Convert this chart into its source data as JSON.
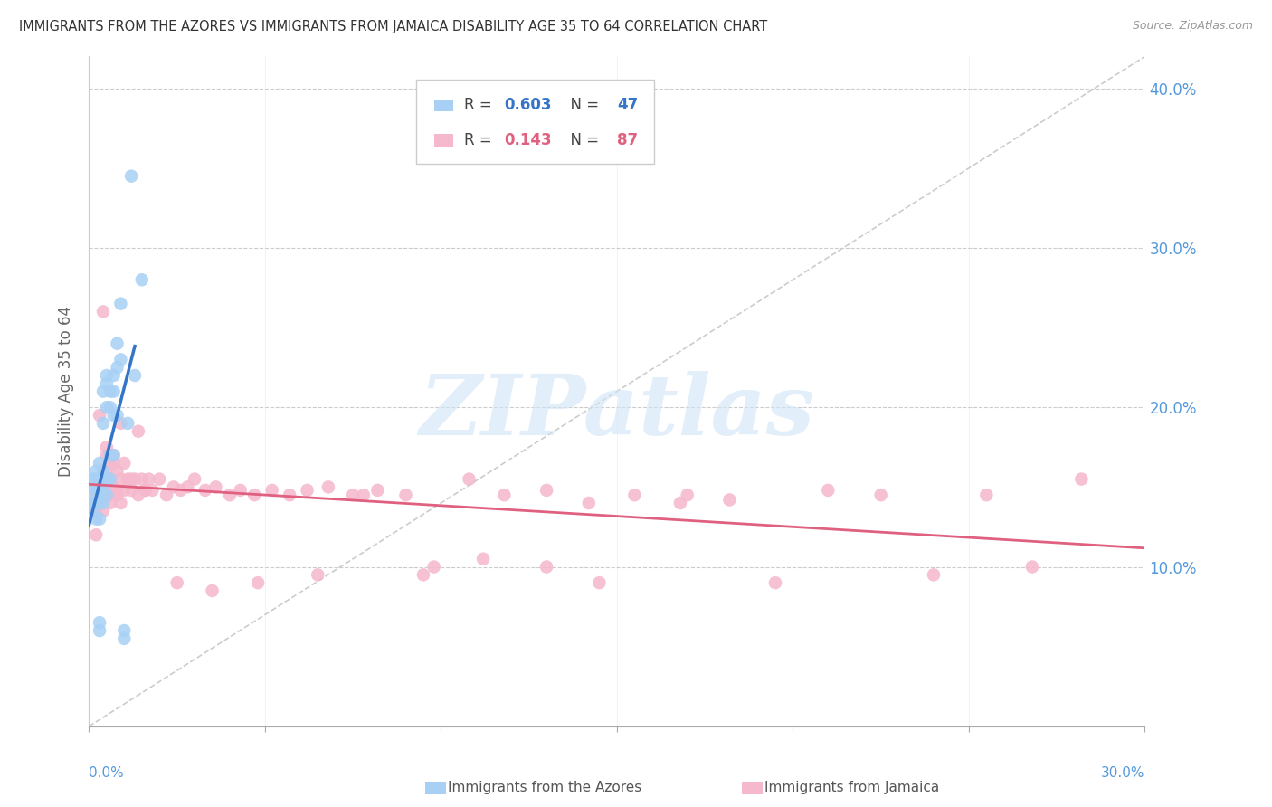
{
  "title": "IMMIGRANTS FROM THE AZORES VS IMMIGRANTS FROM JAMAICA DISABILITY AGE 35 TO 64 CORRELATION CHART",
  "source": "Source: ZipAtlas.com",
  "ylabel": "Disability Age 35 to 64",
  "xlim": [
    0.0,
    0.3
  ],
  "ylim": [
    0.0,
    0.42
  ],
  "yticks": [
    0.0,
    0.1,
    0.2,
    0.3,
    0.4
  ],
  "ytick_labels": [
    "",
    "10.0%",
    "20.0%",
    "30.0%",
    "40.0%"
  ],
  "watermark": "ZIPatlas",
  "color_azores": "#a8d0f5",
  "color_jamaica": "#f5b8cc",
  "color_line_azores": "#3575c8",
  "color_line_jamaica": "#e06080",
  "color_axis_labels": "#5599dd",
  "color_title": "#333333",
  "color_source": "#999999",
  "color_watermark_zip": "#d0e4f5",
  "color_watermark_atlas": "#c8dff5",
  "color_diag_line": "#cccccc",
  "azores_x": [
    0.001,
    0.001,
    0.001,
    0.001,
    0.002,
    0.002,
    0.002,
    0.002,
    0.002,
    0.002,
    0.003,
    0.003,
    0.003,
    0.003,
    0.003,
    0.003,
    0.003,
    0.004,
    0.004,
    0.004,
    0.004,
    0.004,
    0.004,
    0.005,
    0.005,
    0.005,
    0.005,
    0.005,
    0.006,
    0.006,
    0.006,
    0.006,
    0.007,
    0.007,
    0.007,
    0.007,
    0.008,
    0.008,
    0.008,
    0.009,
    0.009,
    0.01,
    0.01,
    0.011,
    0.012,
    0.013,
    0.015
  ],
  "azores_y": [
    0.135,
    0.14,
    0.15,
    0.155,
    0.13,
    0.14,
    0.145,
    0.15,
    0.155,
    0.16,
    0.06,
    0.065,
    0.13,
    0.14,
    0.15,
    0.155,
    0.165,
    0.14,
    0.148,
    0.155,
    0.16,
    0.19,
    0.21,
    0.145,
    0.155,
    0.2,
    0.215,
    0.22,
    0.155,
    0.17,
    0.2,
    0.21,
    0.17,
    0.195,
    0.21,
    0.22,
    0.195,
    0.225,
    0.24,
    0.23,
    0.265,
    0.055,
    0.06,
    0.19,
    0.345,
    0.22,
    0.28
  ],
  "jamaica_x": [
    0.001,
    0.002,
    0.002,
    0.003,
    0.003,
    0.003,
    0.004,
    0.004,
    0.004,
    0.005,
    0.005,
    0.005,
    0.006,
    0.006,
    0.007,
    0.007,
    0.008,
    0.008,
    0.009,
    0.009,
    0.01,
    0.01,
    0.011,
    0.012,
    0.013,
    0.014,
    0.015,
    0.016,
    0.017,
    0.018,
    0.02,
    0.022,
    0.024,
    0.026,
    0.028,
    0.03,
    0.033,
    0.036,
    0.04,
    0.043,
    0.047,
    0.052,
    0.057,
    0.062,
    0.068,
    0.075,
    0.082,
    0.09,
    0.098,
    0.108,
    0.118,
    0.13,
    0.142,
    0.155,
    0.168,
    0.182,
    0.195,
    0.21,
    0.225,
    0.24,
    0.255,
    0.268,
    0.282,
    0.17,
    0.145,
    0.13,
    0.112,
    0.095,
    0.078,
    0.065,
    0.048,
    0.035,
    0.025,
    0.014,
    0.009,
    0.007,
    0.006,
    0.005,
    0.004,
    0.003,
    0.002,
    0.003,
    0.004,
    0.006,
    0.008,
    0.012,
    0.016
  ],
  "jamaica_y": [
    0.14,
    0.135,
    0.145,
    0.14,
    0.148,
    0.155,
    0.135,
    0.145,
    0.155,
    0.148,
    0.16,
    0.17,
    0.14,
    0.155,
    0.15,
    0.165,
    0.145,
    0.16,
    0.14,
    0.155,
    0.148,
    0.165,
    0.155,
    0.148,
    0.155,
    0.145,
    0.155,
    0.148,
    0.155,
    0.148,
    0.155,
    0.145,
    0.15,
    0.148,
    0.15,
    0.155,
    0.148,
    0.15,
    0.145,
    0.148,
    0.145,
    0.148,
    0.145,
    0.148,
    0.15,
    0.145,
    0.148,
    0.145,
    0.1,
    0.155,
    0.145,
    0.148,
    0.14,
    0.145,
    0.14,
    0.142,
    0.09,
    0.148,
    0.145,
    0.095,
    0.145,
    0.1,
    0.155,
    0.145,
    0.09,
    0.1,
    0.105,
    0.095,
    0.145,
    0.095,
    0.09,
    0.085,
    0.09,
    0.185,
    0.19,
    0.17,
    0.165,
    0.175,
    0.26,
    0.195,
    0.12,
    0.14,
    0.15,
    0.145,
    0.148,
    0.155,
    0.148
  ]
}
